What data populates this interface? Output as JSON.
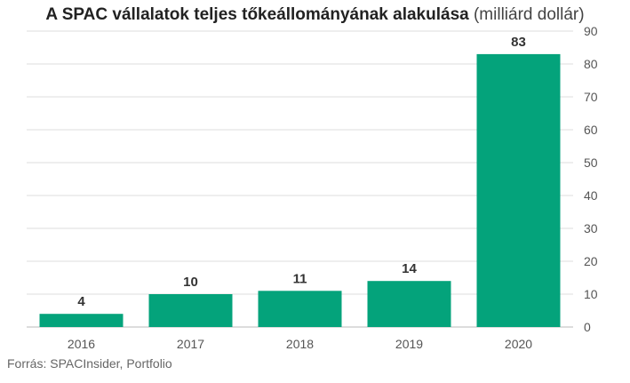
{
  "header": {
    "title": "A SPAC vállalatok teljes tőkeállományának alakulása",
    "unit": " (milliárd dollár)"
  },
  "source": "Forrás: SPACInsider, Portfolio",
  "chart_data": {
    "type": "bar",
    "title": "A SPAC vállalatok teljes tőkeállományának alakulása",
    "subtitle": "(milliárd dollár)",
    "categories": [
      "2016",
      "2017",
      "2018",
      "2019",
      "2020"
    ],
    "values": [
      4,
      10,
      11,
      14,
      83
    ],
    "value_labels": [
      "4",
      "10",
      "11",
      "14",
      "83"
    ],
    "ylim": [
      0,
      90
    ],
    "yticks": [
      0,
      10,
      20,
      30,
      40,
      50,
      60,
      70,
      80,
      90
    ],
    "y_axis_side": "right",
    "grid": true,
    "bar_color": "#04a37b",
    "gridline_color": "#dddddd",
    "xlabel": "",
    "ylabel": ""
  }
}
